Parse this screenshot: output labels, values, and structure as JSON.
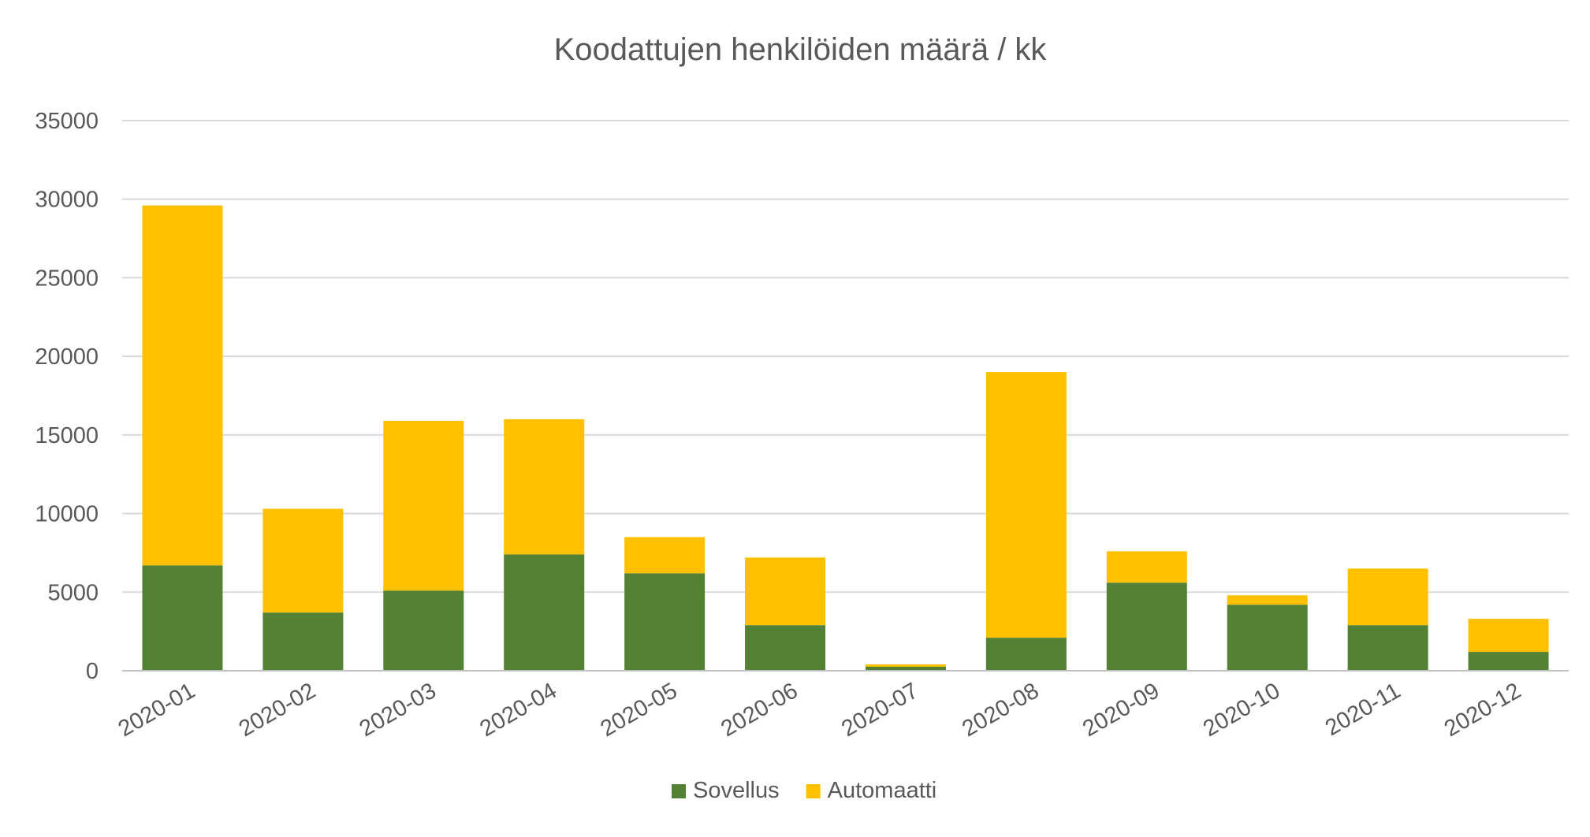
{
  "chart_data": {
    "type": "bar",
    "stacked": true,
    "title": "Koodattujen henkilöiden määrä / kk",
    "xlabel": "",
    "ylabel": "",
    "categories": [
      "2020-01",
      "2020-02",
      "2020-03",
      "2020-04",
      "2020-05",
      "2020-06",
      "2020-07",
      "2020-08",
      "2020-09",
      "2020-10",
      "2020-11",
      "2020-12"
    ],
    "series": [
      {
        "name": "Sovellus",
        "color": "#548235",
        "values": [
          6700,
          3700,
          5100,
          7400,
          6200,
          2900,
          250,
          2100,
          5600,
          4200,
          2900,
          1200
        ]
      },
      {
        "name": "Automaatti",
        "color": "#ffc000",
        "values": [
          22900,
          6600,
          10800,
          8600,
          2300,
          4300,
          150,
          16900,
          2000,
          600,
          3600,
          2100
        ]
      }
    ],
    "ylim": [
      0,
      35000
    ],
    "yticks": [
      0,
      5000,
      10000,
      15000,
      20000,
      25000,
      30000,
      35000
    ],
    "grid": true,
    "legend": "bottom"
  }
}
